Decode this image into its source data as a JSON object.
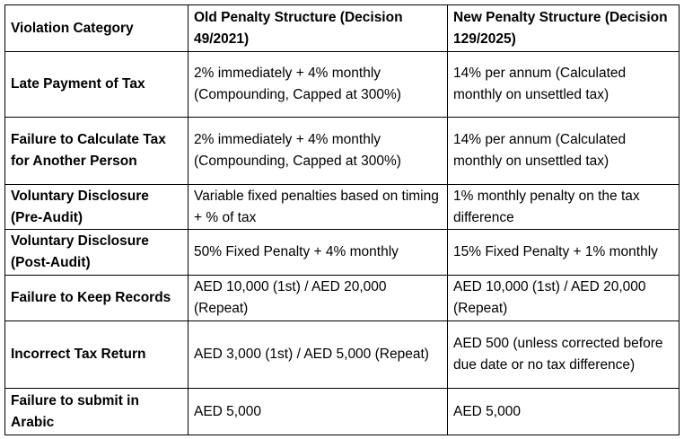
{
  "headers": [
    "Violation Category",
    "Old Penalty Structure (Decision 49/2021)",
    "New Penalty Structure (Decision 129/2025)"
  ],
  "rows": [
    [
      "Late Payment of Tax",
      "2% immediately + 4% monthly (Compounding, Capped at 300%)",
      "14% per annum (Calculated monthly on unsettled tax)"
    ],
    [
      "Failure to Calculate Tax for Another Person",
      "2% immediately + 4% monthly (Compounding, Capped at 300%)",
      "14% per annum (Calculated monthly on unsettled tax)"
    ],
    [
      "Voluntary Disclosure (Pre-Audit)",
      "Variable fixed penalties based on timing + % of tax",
      "1% monthly penalty on the tax difference"
    ],
    [
      "Voluntary Disclosure (Post-Audit)",
      "50% Fixed Penalty + 4% monthly",
      "15% Fixed Penalty + 1% monthly"
    ],
    [
      "Failure to Keep Records",
      "AED 10,000 (1st) / AED 20,000 (Repeat)",
      "AED 10,000 (1st) / AED 20,000 (Repeat)"
    ],
    [
      "Incorrect Tax Return",
      "AED 3,000 (1st) / AED 5,000 (Repeat)",
      "AED 500 (unless corrected before due date or no tax difference)"
    ],
    [
      "Failure to submit in Arabic",
      "AED 5,000",
      "AED 5,000"
    ]
  ]
}
